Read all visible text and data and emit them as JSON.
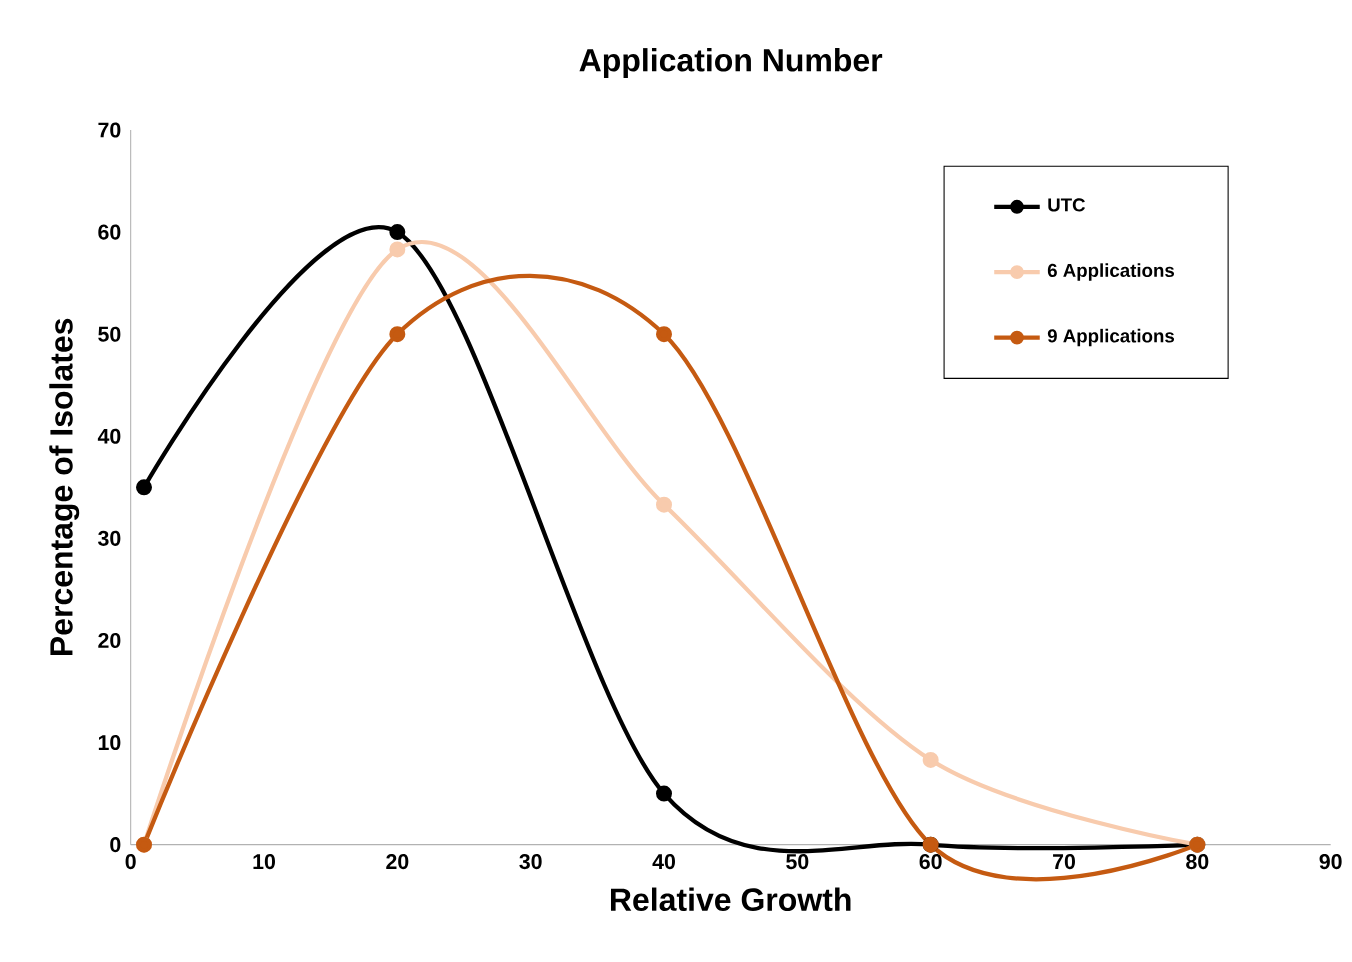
{
  "chart_data": {
    "type": "line",
    "title": "Application Number",
    "xlabel": "Relative Growth",
    "ylabel": "Percentage of Isolates",
    "x": [
      1,
      20,
      40,
      60,
      80
    ],
    "series": [
      {
        "name": "UTC",
        "color": "#000000",
        "values": [
          35,
          60,
          5,
          0,
          0
        ]
      },
      {
        "name": "6 Applications",
        "color": "#f8cbad",
        "values": [
          0,
          58.3,
          33.3,
          8.3,
          0
        ]
      },
      {
        "name": "9 Applications",
        "color": "#c55a11",
        "values": [
          0,
          50,
          50,
          0,
          0
        ]
      }
    ],
    "xlim": [
      0,
      90
    ],
    "ylim": [
      0,
      70
    ],
    "xticks": [
      0,
      10,
      20,
      30,
      40,
      50,
      60,
      70,
      80,
      90
    ],
    "yticks": [
      0,
      10,
      20,
      30,
      40,
      50,
      60,
      70
    ],
    "grid": false,
    "legend": "top right",
    "marker": "circle",
    "line_style": "solid"
  }
}
